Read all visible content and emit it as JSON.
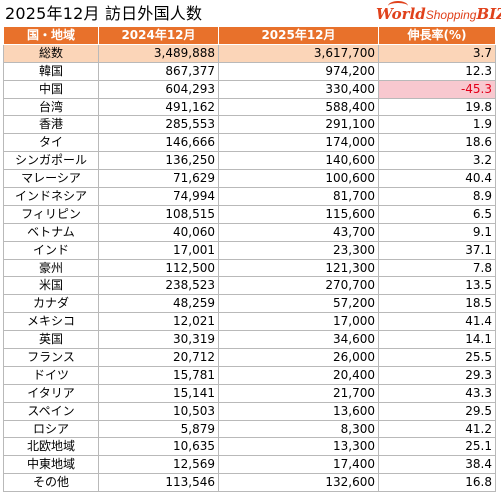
{
  "title": "2025年12月 訪日外国人数",
  "logo": {
    "main": "World",
    "mid": "Shopping",
    "end": "BIZ"
  },
  "table": {
    "headers": [
      "国・地域",
      "2024年12月",
      "2025年12月",
      "伸長率(%)"
    ],
    "rows": [
      {
        "name": "総数",
        "v2024": "3,489,888",
        "v2025": "3,617,700",
        "rate": "3.7",
        "total": true
      },
      {
        "name": "韓国",
        "v2024": "867,377",
        "v2025": "974,200",
        "rate": "12.3"
      },
      {
        "name": "中国",
        "v2024": "604,293",
        "v2025": "330,400",
        "rate": "-45.3",
        "negative": true
      },
      {
        "name": "台湾",
        "v2024": "491,162",
        "v2025": "588,400",
        "rate": "19.8"
      },
      {
        "name": "香港",
        "v2024": "285,553",
        "v2025": "291,100",
        "rate": "1.9"
      },
      {
        "name": "タイ",
        "v2024": "146,666",
        "v2025": "174,000",
        "rate": "18.6"
      },
      {
        "name": "シンガポール",
        "v2024": "136,250",
        "v2025": "140,600",
        "rate": "3.2"
      },
      {
        "name": "マレーシア",
        "v2024": "71,629",
        "v2025": "100,600",
        "rate": "40.4"
      },
      {
        "name": "インドネシア",
        "v2024": "74,994",
        "v2025": "81,700",
        "rate": "8.9"
      },
      {
        "name": "フィリピン",
        "v2024": "108,515",
        "v2025": "115,600",
        "rate": "6.5"
      },
      {
        "name": "ベトナム",
        "v2024": "40,060",
        "v2025": "43,700",
        "rate": "9.1"
      },
      {
        "name": "インド",
        "v2024": "17,001",
        "v2025": "23,300",
        "rate": "37.1"
      },
      {
        "name": "豪州",
        "v2024": "112,500",
        "v2025": "121,300",
        "rate": "7.8"
      },
      {
        "name": "米国",
        "v2024": "238,523",
        "v2025": "270,700",
        "rate": "13.5"
      },
      {
        "name": "カナダ",
        "v2024": "48,259",
        "v2025": "57,200",
        "rate": "18.5"
      },
      {
        "name": "メキシコ",
        "v2024": "12,021",
        "v2025": "17,000",
        "rate": "41.4"
      },
      {
        "name": "英国",
        "v2024": "30,319",
        "v2025": "34,600",
        "rate": "14.1"
      },
      {
        "name": "フランス",
        "v2024": "20,712",
        "v2025": "26,000",
        "rate": "25.5"
      },
      {
        "name": "ドイツ",
        "v2024": "15,781",
        "v2025": "20,400",
        "rate": "29.3"
      },
      {
        "name": "イタリア",
        "v2024": "15,141",
        "v2025": "21,700",
        "rate": "43.3"
      },
      {
        "name": "スペイン",
        "v2024": "10,503",
        "v2025": "13,600",
        "rate": "29.5"
      },
      {
        "name": "ロシア",
        "v2024": "5,879",
        "v2025": "8,300",
        "rate": "41.2"
      },
      {
        "name": "北欧地域",
        "v2024": "10,635",
        "v2025": "13,300",
        "rate": "25.1"
      },
      {
        "name": "中東地域",
        "v2024": "12,569",
        "v2025": "17,400",
        "rate": "38.4"
      },
      {
        "name": "その他",
        "v2024": "113,546",
        "v2025": "132,600",
        "rate": "16.8"
      }
    ]
  },
  "colors": {
    "header_bg": "#e8712b",
    "total_bg": "#fbd5b8",
    "negative_bg": "#f8c8cf",
    "negative_text": "#e2001a",
    "logo": "#e0411b"
  }
}
